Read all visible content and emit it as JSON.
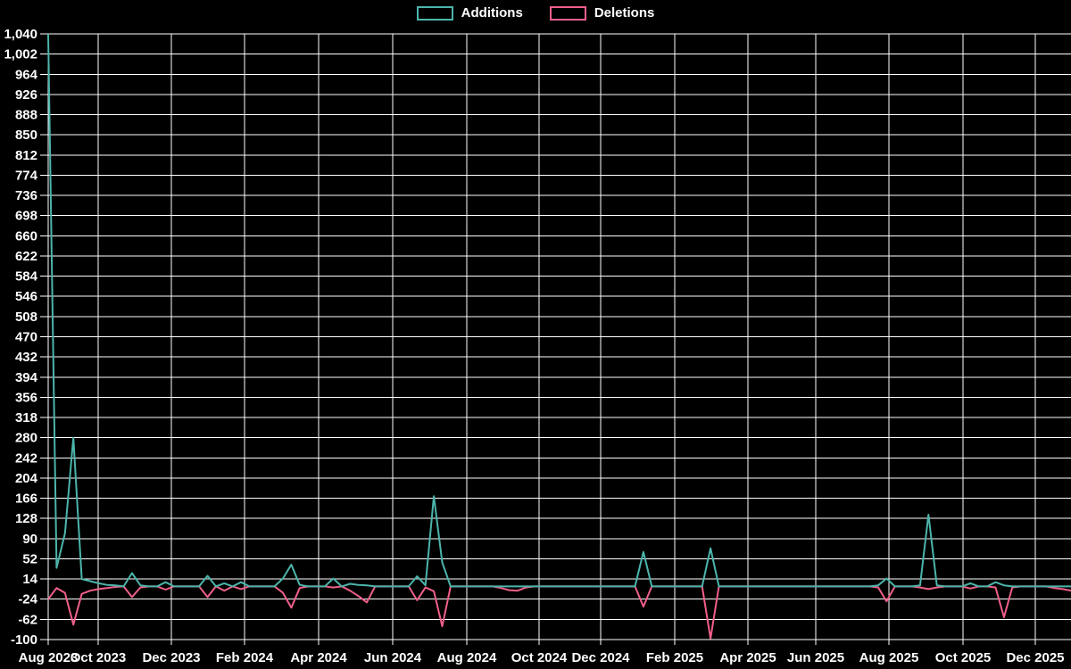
{
  "colors": {
    "background": "#000000",
    "grid": "#ffffff",
    "text": "#ffffff",
    "additions": "#4cb5ab",
    "deletions": "#f0608a"
  },
  "legend": {
    "items": [
      {
        "label": "Additions",
        "color": "#4cb5ab"
      },
      {
        "label": "Deletions",
        "color": "#f0608a"
      }
    ]
  },
  "chart_data": {
    "type": "line",
    "title": "",
    "xlabel": "",
    "ylabel": "",
    "grid": true,
    "legend_position": "top-center",
    "frequency": "weekly",
    "num_weeks": 123,
    "start_week": "2023-08-20",
    "end_week": "2025-12-21",
    "baseline": {
      "additions": 0,
      "deletions": 0
    },
    "series": [
      {
        "name": "Additions",
        "color": "#4cb5ab"
      },
      {
        "name": "Deletions",
        "color": "#f0608a"
      }
    ],
    "x_axis": {
      "tick_labels": [
        "Aug 2023",
        "Oct 2023",
        "Dec 2023",
        "Feb 2024",
        "Apr 2024",
        "Jun 2024",
        "Aug 2024",
        "Oct 2024",
        "Dec 2024",
        "Feb 2025",
        "Apr 2025",
        "Jun 2025",
        "Aug 2025",
        "Oct 2025",
        "Dec 2025"
      ]
    },
    "y_axis": {
      "max": 1040,
      "min": -100,
      "step": 38,
      "tick_labels": [
        "1,040",
        "1,002",
        "964",
        "926",
        "888",
        "850",
        "812",
        "774",
        "736",
        "698",
        "660",
        "622",
        "584",
        "546",
        "508",
        "470",
        "432",
        "394",
        "356",
        "318",
        "280",
        "242",
        "204",
        "166",
        "128",
        "90",
        "52",
        "14",
        "-24",
        "-62",
        "-100"
      ]
    },
    "nonzero_weeks": [
      {
        "week": 0,
        "date": "2023-08-20",
        "additions": 1040,
        "deletions": -24
      },
      {
        "week": 1,
        "date": "2023-08-27",
        "additions": 35,
        "deletions": -3
      },
      {
        "week": 2,
        "date": "2023-09-03",
        "additions": 100,
        "deletions": -12
      },
      {
        "week": 3,
        "date": "2023-09-10",
        "additions": 280,
        "deletions": -72
      },
      {
        "week": 4,
        "date": "2023-09-17",
        "additions": 14,
        "deletions": -14
      },
      {
        "week": 5,
        "date": "2023-09-24",
        "additions": 10,
        "deletions": -8
      },
      {
        "week": 6,
        "date": "2023-10-01",
        "additions": 6,
        "deletions": -5
      },
      {
        "week": 7,
        "date": "2023-10-08",
        "additions": 3,
        "deletions": -3
      },
      {
        "week": 8,
        "date": "2023-10-15",
        "additions": 2,
        "deletions": -1
      },
      {
        "week": 10,
        "date": "2023-10-29",
        "additions": 25,
        "deletions": -20
      },
      {
        "week": 11,
        "date": "2023-11-05",
        "additions": 2,
        "deletions": -2
      },
      {
        "week": 14,
        "date": "2023-11-26",
        "additions": 8,
        "deletions": -6
      },
      {
        "week": 19,
        "date": "2023-12-31",
        "additions": 20,
        "deletions": -20
      },
      {
        "week": 21,
        "date": "2024-01-14",
        "additions": 6,
        "deletions": -8
      },
      {
        "week": 23,
        "date": "2024-01-28",
        "additions": 8,
        "deletions": -5
      },
      {
        "week": 28,
        "date": "2024-03-03",
        "additions": 15,
        "deletions": -12
      },
      {
        "week": 29,
        "date": "2024-03-10",
        "additions": 41,
        "deletions": -40
      },
      {
        "week": 30,
        "date": "2024-03-17",
        "additions": 3,
        "deletions": -3
      },
      {
        "week": 34,
        "date": "2024-04-14",
        "additions": 15,
        "deletions": -2
      },
      {
        "week": 36,
        "date": "2024-04-28",
        "additions": 5,
        "deletions": -8
      },
      {
        "week": 37,
        "date": "2024-05-05",
        "additions": 3,
        "deletions": -18
      },
      {
        "week": 38,
        "date": "2024-05-12",
        "additions": 2,
        "deletions": -30
      },
      {
        "week": 44,
        "date": "2024-06-23",
        "additions": 19,
        "deletions": -26
      },
      {
        "week": 45,
        "date": "2024-06-30",
        "additions": 2,
        "deletions": -2
      },
      {
        "week": 46,
        "date": "2024-07-07",
        "additions": 170,
        "deletions": -9
      },
      {
        "week": 47,
        "date": "2024-07-14",
        "additions": 45,
        "deletions": -75
      },
      {
        "week": 54,
        "date": "2024-09-01",
        "additions": 0,
        "deletions": -3
      },
      {
        "week": 55,
        "date": "2024-09-08",
        "additions": 0,
        "deletions": -7
      },
      {
        "week": 56,
        "date": "2024-09-15",
        "additions": 0,
        "deletions": -8
      },
      {
        "week": 57,
        "date": "2024-09-22",
        "additions": 0,
        "deletions": -2
      },
      {
        "week": 71,
        "date": "2024-12-29",
        "additions": 65,
        "deletions": -38
      },
      {
        "week": 79,
        "date": "2025-02-23",
        "additions": 72,
        "deletions": -98
      },
      {
        "week": 99,
        "date": "2025-07-13",
        "additions": 2,
        "deletions": -2
      },
      {
        "week": 100,
        "date": "2025-07-20",
        "additions": 15,
        "deletions": -28
      },
      {
        "week": 104,
        "date": "2025-08-17",
        "additions": 2,
        "deletions": -2
      },
      {
        "week": 105,
        "date": "2025-08-24",
        "additions": 135,
        "deletions": -5
      },
      {
        "week": 106,
        "date": "2025-08-31",
        "additions": 2,
        "deletions": -2
      },
      {
        "week": 110,
        "date": "2025-09-28",
        "additions": 6,
        "deletions": -4
      },
      {
        "week": 113,
        "date": "2025-10-19",
        "additions": 8,
        "deletions": -2
      },
      {
        "week": 114,
        "date": "2025-10-26",
        "additions": 2,
        "deletions": -58
      },
      {
        "week": 115,
        "date": "2025-11-02",
        "additions": 0,
        "deletions": -2
      },
      {
        "week": 120,
        "date": "2025-12-07",
        "additions": 0,
        "deletions": -3
      },
      {
        "week": 121,
        "date": "2025-12-14",
        "additions": 0,
        "deletions": -5
      },
      {
        "week": 122,
        "date": "2025-12-21",
        "additions": 0,
        "deletions": -8
      }
    ]
  }
}
